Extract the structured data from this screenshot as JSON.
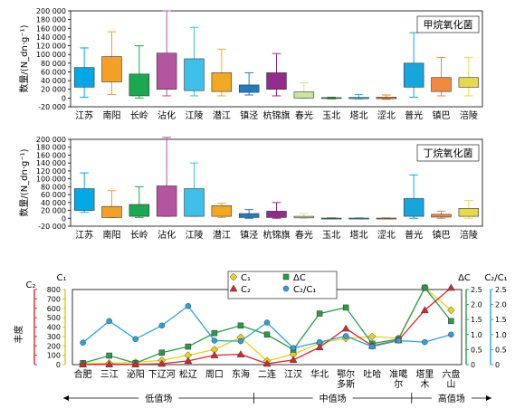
{
  "chart_data": [
    {
      "type": "box",
      "legend": "甲烷氧化菌",
      "ylabel": "数量/(N_dn·g⁻¹)",
      "ylim": [
        -20000,
        200000
      ],
      "yticks": [
        "-20 000",
        "0",
        "20 000",
        "40 000",
        "60 000",
        "80 000",
        "100 000",
        "120 000",
        "140 000",
        "160 000",
        "180 000",
        "200 000"
      ],
      "categories": [
        "江苏",
        "南阳",
        "长岭",
        "沾化",
        "江陵",
        "潜江",
        "镇泾",
        "杭锦旗",
        "春光",
        "玉北",
        "塔北",
        "涩北",
        "普光",
        "镇巴",
        "涪陵"
      ],
      "colors": [
        "#00a8e6",
        "#f4a028",
        "#1aa850",
        "#b4559f",
        "#3fc0ea",
        "#f3a823",
        "#1e7dc2",
        "#922b8d",
        "#cde39a",
        "#3a9a4d",
        "#39b3c6",
        "#e0832c",
        "#16a6dd",
        "#f1883e",
        "#e7d84c"
      ],
      "boxes": [
        {
          "min": 2000,
          "q1": 25000,
          "q3": 70000,
          "max": 115000
        },
        {
          "min": 8000,
          "q1": 37000,
          "q3": 95000,
          "max": 152000
        },
        {
          "min": 0,
          "q1": 5000,
          "q3": 55000,
          "max": 120000
        },
        {
          "min": 5000,
          "q1": 20000,
          "q3": 103000,
          "max": 200000
        },
        {
          "min": 5000,
          "q1": 17000,
          "q3": 90000,
          "max": 162000
        },
        {
          "min": 5000,
          "q1": 15000,
          "q3": 58000,
          "max": 112000
        },
        {
          "min": 7000,
          "q1": 13000,
          "q3": 30000,
          "max": 58000
        },
        {
          "min": 5000,
          "q1": 20000,
          "q3": 58000,
          "max": 102000
        },
        {
          "min": 0,
          "q1": 0,
          "q3": 14000,
          "max": 35000
        },
        {
          "min": -2000,
          "q1": -1000,
          "q3": 1000,
          "max": 2000
        },
        {
          "min": -2000,
          "q1": -1500,
          "q3": 1500,
          "max": 8000
        },
        {
          "min": -3000,
          "q1": -1500,
          "q3": 2000,
          "max": 7000
        },
        {
          "min": 2000,
          "q1": 25000,
          "q3": 80000,
          "max": 150000
        },
        {
          "min": 5000,
          "q1": 15000,
          "q3": 47000,
          "max": 93000
        },
        {
          "min": 5000,
          "q1": 25000,
          "q3": 47000,
          "max": 93000
        }
      ]
    },
    {
      "type": "box",
      "legend": "丁烷氧化菌",
      "ylabel": "数量/(N_dn·g⁻¹)",
      "ylim": [
        -20000,
        200000
      ],
      "yticks": [
        "-20 000",
        "0",
        "20 000",
        "40 000",
        "60 000",
        "80 000",
        "100 000",
        "120 000",
        "140 000",
        "160 000",
        "180 000",
        "200 000"
      ],
      "categories": [
        "江苏",
        "南阳",
        "长岭",
        "沾化",
        "江陵",
        "潜江",
        "镇泾",
        "杭锦旗",
        "春光",
        "玉北",
        "塔北",
        "涩北",
        "普光",
        "镇巴",
        "涪陵"
      ],
      "colors": [
        "#00a8e6",
        "#f4a028",
        "#1aa850",
        "#b4559f",
        "#3fc0ea",
        "#f3a823",
        "#1e7dc2",
        "#922b8d",
        "#cde39a",
        "#3a9a4d",
        "#39b3c6",
        "#e0832c",
        "#16a6dd",
        "#f1883e",
        "#e7d84c"
      ],
      "boxes": [
        {
          "min": 15000,
          "q1": 20000,
          "q3": 75000,
          "max": 115000
        },
        {
          "min": 2000,
          "q1": 2000,
          "q3": 30000,
          "max": 70000
        },
        {
          "min": 2000,
          "q1": 5000,
          "q3": 35000,
          "max": 80000
        },
        {
          "min": 5000,
          "q1": 5000,
          "q3": 82000,
          "max": 205000
        },
        {
          "min": 5000,
          "q1": 5000,
          "q3": 75000,
          "max": 140000
        },
        {
          "min": 2000,
          "q1": 5000,
          "q3": 32000,
          "max": 38000
        },
        {
          "min": 0,
          "q1": 2000,
          "q3": 12000,
          "max": 22000
        },
        {
          "min": 0,
          "q1": 2000,
          "q3": 18000,
          "max": 40000
        },
        {
          "min": 0,
          "q1": 1000,
          "q3": 5000,
          "max": 12000
        },
        {
          "min": -1000,
          "q1": -500,
          "q3": 500,
          "max": 1000
        },
        {
          "min": -1000,
          "q1": -500,
          "q3": 500,
          "max": 1000
        },
        {
          "min": -1000,
          "q1": -500,
          "q3": 500,
          "max": 1000
        },
        {
          "min": 0,
          "q1": 5000,
          "q3": 50000,
          "max": 110000
        },
        {
          "min": 0,
          "q1": 3000,
          "q3": 10000,
          "max": 18000
        },
        {
          "min": 0,
          "q1": 5000,
          "q3": 25000,
          "max": 45000
        }
      ]
    },
    {
      "type": "line",
      "categories": [
        "合肥",
        "三江",
        "泌阳",
        "下辽河",
        "松辽",
        "周口",
        "东海",
        "二连",
        "江汉",
        "华北",
        "鄂尔多斯",
        "吐哈",
        "准噶尔",
        "塔里木",
        "六盘山"
      ],
      "left_axis": {
        "label_outer": "C₂",
        "label_inner": "C₁",
        "title": "丰度",
        "ticks": [
          "0",
          "100",
          "200",
          "300",
          "400",
          "500",
          "600",
          "700",
          "800"
        ],
        "ylim": [
          0,
          800
        ]
      },
      "right_axis_1": {
        "label": "ΔC",
        "ticks": [
          "0",
          "0.5",
          "1.0",
          "1.5",
          "2.0",
          "2.5"
        ],
        "ylim": [
          0,
          2.5
        ]
      },
      "right_axis_2": {
        "label": "C₂/C₁",
        "ticks": [
          "0",
          "0.5",
          "1.0",
          "1.5",
          "2.0",
          "2.5"
        ],
        "ylim": [
          0,
          2.5
        ]
      },
      "series": [
        {
          "name": "C₁",
          "axis": "left",
          "color": "#e5d31c",
          "marker": "diamond",
          "values": [
            10,
            15,
            25,
            45,
            100,
            160,
            290,
            40,
            110,
            230,
            280,
            300,
            280,
            840,
            580
          ]
        },
        {
          "name": "ΔC",
          "axis": "right1",
          "color": "#2a9a4a",
          "marker": "square",
          "values": [
            0.05,
            0.3,
            0.05,
            0.4,
            0.6,
            1.05,
            1.3,
            1.0,
            0.5,
            1.7,
            1.9,
            0.7,
            0.85,
            2.8,
            1.45
          ]
        },
        {
          "name": "C₂",
          "axis": "left",
          "color": "#d92530",
          "marker": "triangle",
          "values": [
            2,
            3,
            3,
            10,
            40,
            100,
            110,
            10,
            50,
            185,
            385,
            200,
            260,
            580,
            920
          ]
        },
        {
          "name": "C₂/C₁",
          "axis": "right2",
          "color": "#2ba3d8",
          "marker": "circle",
          "values": [
            0.73,
            1.45,
            0.85,
            1.3,
            1.95,
            0.8,
            0.78,
            1.4,
            0.55,
            0.75,
            0.95,
            0.6,
            0.8,
            0.75,
            1.0
          ]
        }
      ],
      "groups": [
        {
          "label": "低值场",
          "from": 0,
          "to": 6
        },
        {
          "label": "中值场",
          "from": 7,
          "to": 12
        },
        {
          "label": "高值场",
          "from": 13,
          "to": 14
        }
      ]
    }
  ]
}
